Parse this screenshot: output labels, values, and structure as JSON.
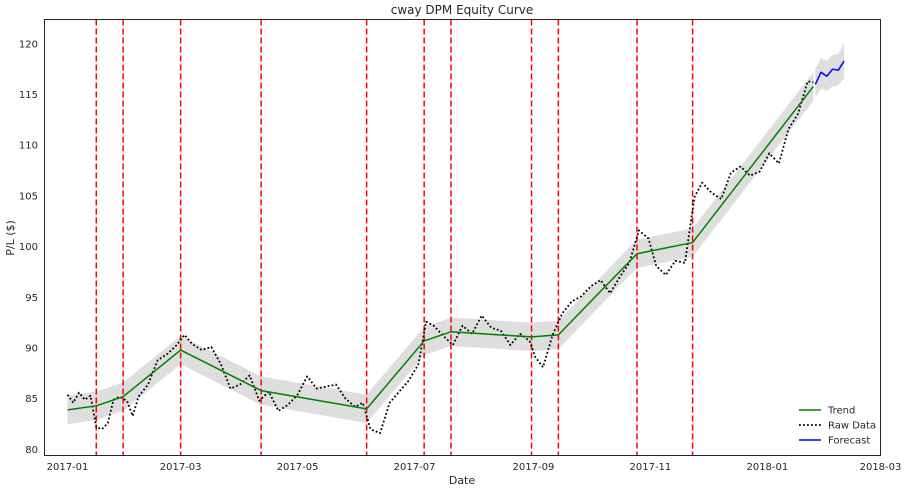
{
  "chart_data": {
    "type": "line",
    "title": "cway DPM Equity Curve",
    "xlabel": "Date",
    "ylabel": "P/L ($)",
    "xlim": [
      "2016-12-20",
      "2018-03-01"
    ],
    "ylim": [
      79.4,
      122.4
    ],
    "x_ticks": [
      "2017-01-01",
      "2017-03-01",
      "2017-05-01",
      "2017-07-01",
      "2017-09-01",
      "2017-11-01",
      "2018-01-01",
      "2018-03-01"
    ],
    "x_tick_labels": [
      "2017-01",
      "2017-03",
      "2017-05",
      "2017-07",
      "2017-09",
      "2017-11",
      "2018-01",
      "2018-03"
    ],
    "y_ticks": [
      80,
      85,
      90,
      95,
      100,
      105,
      110,
      115,
      120
    ],
    "grid": false,
    "legend_position": "bottom-right",
    "changepoints": [
      "2017-01-16",
      "2017-01-30",
      "2017-03-01",
      "2017-04-12",
      "2017-06-06",
      "2017-07-06",
      "2017-07-20",
      "2017-08-31",
      "2017-09-14",
      "2017-10-25",
      "2017-11-23"
    ],
    "trend_band_halfwidth": 1.4,
    "series": [
      {
        "name": "Trend",
        "color": "#008000",
        "style": "solid",
        "x": [
          "2017-01-01",
          "2017-01-16",
          "2017-01-30",
          "2017-03-01",
          "2017-04-12",
          "2017-06-06",
          "2017-07-06",
          "2017-07-20",
          "2017-08-31",
          "2017-09-14",
          "2017-10-25",
          "2017-11-23",
          "2018-01-25"
        ],
        "values": [
          83.9,
          84.3,
          85.2,
          89.8,
          85.8,
          84.0,
          90.7,
          91.6,
          91.1,
          91.3,
          99.3,
          100.4,
          115.8
        ]
      },
      {
        "name": "Raw Data",
        "color": "#000000",
        "style": "dotted",
        "x": [
          "2017-01-01",
          "2017-01-04",
          "2017-01-07",
          "2017-01-10",
          "2017-01-13",
          "2017-01-16",
          "2017-01-19",
          "2017-01-22",
          "2017-01-25",
          "2017-01-28",
          "2017-02-01",
          "2017-02-04",
          "2017-02-07",
          "2017-02-12",
          "2017-02-17",
          "2017-02-22",
          "2017-02-27",
          "2017-03-03",
          "2017-03-07",
          "2017-03-12",
          "2017-03-17",
          "2017-03-22",
          "2017-03-27",
          "2017-04-01",
          "2017-04-06",
          "2017-04-11",
          "2017-04-16",
          "2017-04-21",
          "2017-04-26",
          "2017-05-01",
          "2017-05-06",
          "2017-05-11",
          "2017-05-16",
          "2017-05-21",
          "2017-05-26",
          "2017-05-31",
          "2017-06-04",
          "2017-06-08",
          "2017-06-13",
          "2017-06-18",
          "2017-06-23",
          "2017-06-28",
          "2017-07-03",
          "2017-07-07",
          "2017-07-11",
          "2017-07-16",
          "2017-07-21",
          "2017-07-26",
          "2017-07-31",
          "2017-08-05",
          "2017-08-10",
          "2017-08-15",
          "2017-08-20",
          "2017-08-25",
          "2017-08-30",
          "2017-09-02",
          "2017-09-06",
          "2017-09-11",
          "2017-09-16",
          "2017-09-21",
          "2017-09-26",
          "2017-10-01",
          "2017-10-06",
          "2017-10-11",
          "2017-10-16",
          "2017-10-21",
          "2017-10-26",
          "2017-10-31",
          "2017-11-04",
          "2017-11-09",
          "2017-11-14",
          "2017-11-19",
          "2017-11-24",
          "2017-11-28",
          "2017-12-03",
          "2017-12-08",
          "2017-12-13",
          "2017-12-18",
          "2017-12-23",
          "2017-12-28",
          "2018-01-02",
          "2018-01-07",
          "2018-01-12",
          "2018-01-17",
          "2018-01-22",
          "2018-01-25"
        ],
        "values": [
          85.4,
          84.6,
          85.6,
          84.9,
          85.3,
          82.2,
          82.0,
          82.6,
          84.9,
          85.2,
          84.8,
          83.3,
          85.2,
          86.4,
          88.8,
          89.4,
          90.3,
          91.3,
          90.4,
          89.8,
          90.1,
          88.4,
          86.0,
          86.4,
          87.3,
          84.8,
          85.7,
          83.8,
          84.4,
          85.4,
          87.2,
          86.0,
          86.2,
          86.4,
          85.0,
          84.2,
          84.6,
          82.0,
          81.6,
          84.6,
          85.7,
          86.8,
          88.4,
          92.6,
          92.2,
          91.2,
          90.3,
          92.2,
          91.4,
          93.2,
          92.0,
          91.7,
          90.3,
          91.4,
          90.7,
          89.1,
          88.1,
          91.3,
          93.4,
          94.6,
          95.1,
          96.1,
          96.7,
          95.4,
          97.0,
          98.4,
          101.6,
          100.8,
          98.1,
          97.2,
          98.6,
          98.4,
          104.9,
          106.3,
          105.3,
          104.7,
          107.3,
          107.9,
          107.0,
          107.4,
          109.2,
          108.2,
          111.6,
          113.1,
          116.3,
          116.2
        ]
      },
      {
        "name": "Forecast",
        "color": "#0000ff",
        "style": "solid",
        "x": [
          "2018-01-26",
          "2018-01-29",
          "2018-02-01",
          "2018-02-04",
          "2018-02-07",
          "2018-02-10"
        ],
        "values": [
          116.0,
          117.2,
          116.8,
          117.5,
          117.4,
          118.3
        ]
      }
    ],
    "forecast_band": {
      "x": [
        "2018-01-26",
        "2018-01-29",
        "2018-02-01",
        "2018-02-04",
        "2018-02-07",
        "2018-02-10"
      ],
      "lower": [
        114.7,
        115.6,
        115.4,
        115.8,
        115.9,
        116.6
      ],
      "upper": [
        117.5,
        118.6,
        118.3,
        118.9,
        119.0,
        120.1
      ]
    }
  },
  "colors": {
    "trend": "#008000",
    "raw": "#000000",
    "forecast": "#0000ff",
    "changepoint": "#ff0000",
    "band": "#dedede"
  }
}
